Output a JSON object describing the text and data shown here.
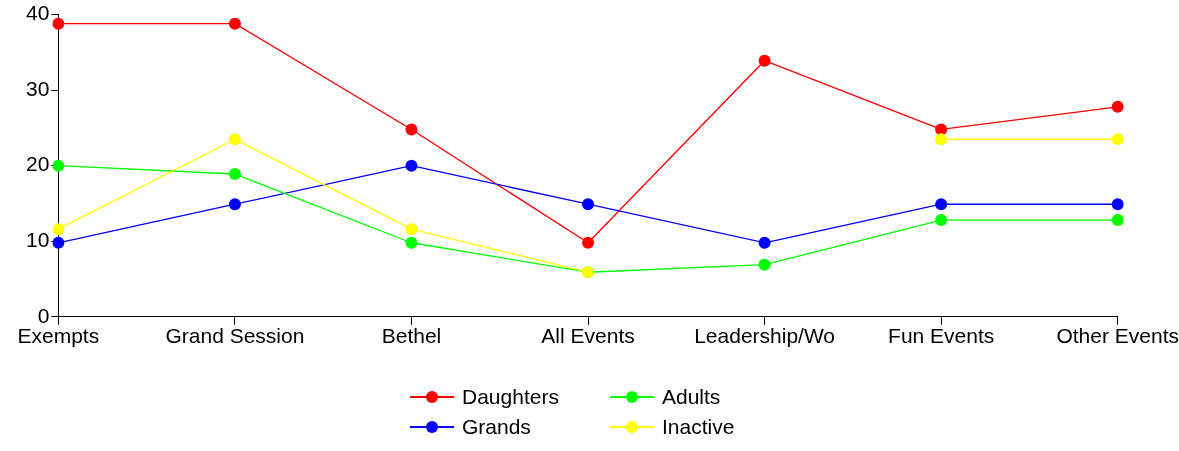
{
  "chart_data": {
    "type": "line",
    "categories": [
      "Exempts",
      "Grand Session",
      "Bethel",
      "All Events",
      "Leadership/Wo",
      "Fun Events",
      "Other Events"
    ],
    "series": [
      {
        "name": "Daughters",
        "color": "#ff0000",
        "values": [
          38.8,
          38.8,
          24.8,
          9.8,
          33.9,
          24.8,
          27.8
        ]
      },
      {
        "name": "Grands",
        "color": "#0000ff",
        "values": [
          9.8,
          14.9,
          20,
          14.9,
          9.8,
          14.9,
          14.9
        ]
      },
      {
        "name": "Adults",
        "color": "#00ff00",
        "values": [
          20,
          18.9,
          9.8,
          5.9,
          6.9,
          12.8,
          12.8
        ]
      },
      {
        "name": "Inactive",
        "color": "#ffff00",
        "values": [
          11.6,
          23.5,
          11.6,
          5.9,
          null,
          23.5,
          23.5
        ]
      }
    ],
    "ylim": [
      0,
      40
    ],
    "yticks": [
      0,
      10,
      20,
      30,
      40
    ],
    "grid": false,
    "legend": "bottom",
    "marker": "circle",
    "line_style": "solid"
  }
}
